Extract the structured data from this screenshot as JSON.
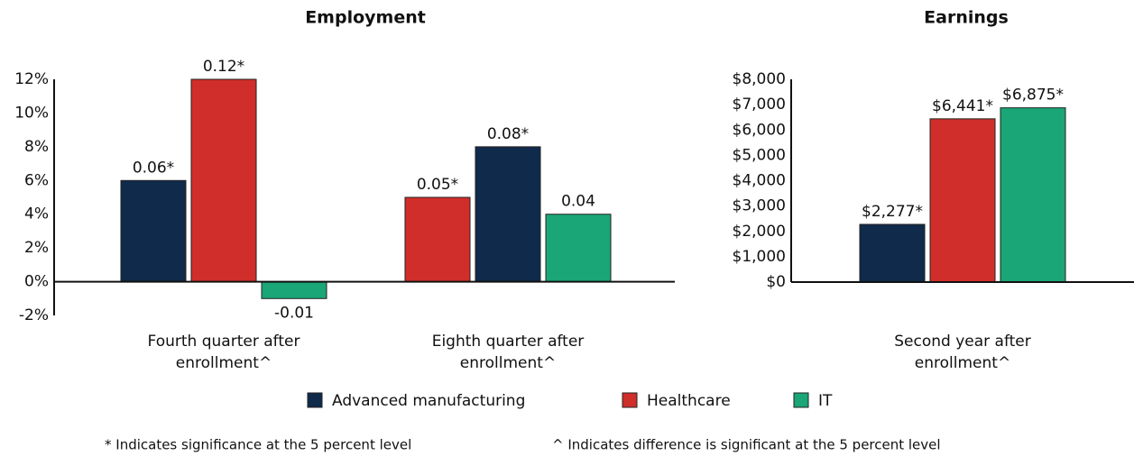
{
  "chart_data": [
    {
      "type": "bar",
      "title": "Employment",
      "categories": [
        "Fourth quarter after enrollment^",
        "Eighth quarter after enrollment^"
      ],
      "series": [
        {
          "name": "Advanced manufacturing",
          "color": "#0f2a4a",
          "values": [
            6,
            8
          ],
          "value_labels": [
            "0.06*",
            "0.08*"
          ]
        },
        {
          "name": "Healthcare",
          "color": "#d02e2a",
          "values": [
            12,
            5
          ],
          "value_labels": [
            "0.12*",
            "0.05*"
          ]
        },
        {
          "name": "IT",
          "color": "#1aa676",
          "values": [
            -1,
            4
          ],
          "value_labels": [
            "-0.01",
            "0.04"
          ]
        }
      ],
      "ylim": [
        -2,
        12
      ],
      "yticks": [
        {
          "value": -2,
          "label": "-2%"
        },
        {
          "value": 0,
          "label": "0%"
        },
        {
          "value": 2,
          "label": "2%"
        },
        {
          "value": 4,
          "label": "4%"
        },
        {
          "value": 6,
          "label": "6%"
        },
        {
          "value": 8,
          "label": "8%"
        },
        {
          "value": 10,
          "label": "10%"
        },
        {
          "value": 12,
          "label": "12%"
        }
      ]
    },
    {
      "type": "bar",
      "title": "Earnings",
      "categories": [
        "Second year after enrollment^"
      ],
      "series": [
        {
          "name": "Advanced manufacturing",
          "color": "#0f2a4a",
          "values": [
            2277
          ],
          "value_labels": [
            "$2,277*"
          ]
        },
        {
          "name": "Healthcare",
          "color": "#d02e2a",
          "values": [
            6441
          ],
          "value_labels": [
            "$6,441*"
          ]
        },
        {
          "name": "IT",
          "color": "#1aa676",
          "values": [
            6875
          ],
          "value_labels": [
            "$6,875*"
          ]
        }
      ],
      "ylim": [
        0,
        8000
      ],
      "yticks": [
        {
          "value": 0,
          "label": "$0"
        },
        {
          "value": 1000,
          "label": "$1,000"
        },
        {
          "value": 2000,
          "label": "$2,000"
        },
        {
          "value": 3000,
          "label": "$3,000"
        },
        {
          "value": 4000,
          "label": "$4,000"
        },
        {
          "value": 5000,
          "label": "$5,000"
        },
        {
          "value": 6000,
          "label": "$6,000"
        },
        {
          "value": 7000,
          "label": "$7,000"
        },
        {
          "value": 8000,
          "label": "$8,000"
        }
      ]
    }
  ],
  "footnotes": [
    "* Indicates significance at the 5 percent level",
    "^ Indicates difference is significant at the 5 percent level"
  ]
}
